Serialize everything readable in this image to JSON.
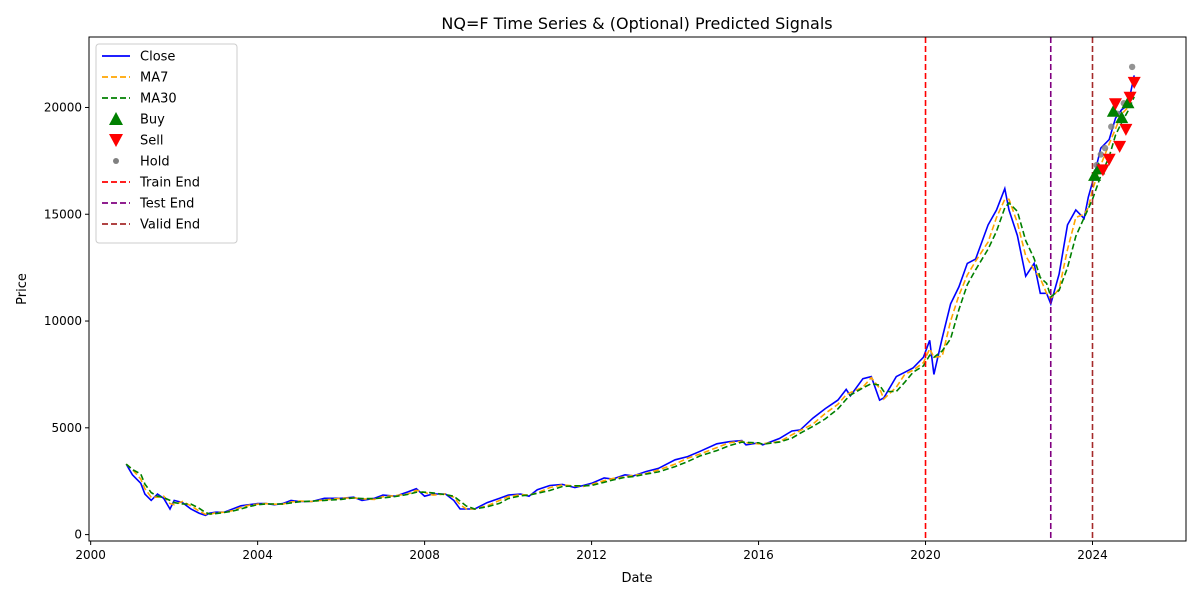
{
  "chart_data": {
    "type": "line",
    "title": "NQ=F Time Series & (Optional) Predicted Signals",
    "xlabel": "Date",
    "ylabel": "Price",
    "xlim": [
      1999.96,
      2026.24
    ],
    "ylim": [
      -300,
      23300
    ],
    "x_ticks": [
      2000,
      2004,
      2008,
      2012,
      2016,
      2020,
      2024
    ],
    "y_ticks": [
      0,
      5000,
      10000,
      15000,
      20000
    ],
    "grid": false,
    "legend_position": "upper-left",
    "colors": {
      "close": "#0000ff",
      "ma7": "#ffa500",
      "ma30": "#008000",
      "buy": "#008000",
      "sell": "#ff0000",
      "hold": "#808080",
      "train_end": "#ff0000",
      "test_end": "#800080",
      "valid_end": "#a52a2a"
    },
    "legend": [
      {
        "label": "Close",
        "kind": "line",
        "color": "#0000ff",
        "dash": ""
      },
      {
        "label": "MA7",
        "kind": "line",
        "color": "#ffa500",
        "dash": "6,3"
      },
      {
        "label": "MA30",
        "kind": "line",
        "color": "#008000",
        "dash": "6,3"
      },
      {
        "label": "Buy",
        "kind": "tri-up",
        "color": "#008000"
      },
      {
        "label": "Sell",
        "kind": "tri-down",
        "color": "#ff0000"
      },
      {
        "label": "Hold",
        "kind": "dot",
        "color": "#808080"
      },
      {
        "label": "Train End",
        "kind": "line",
        "color": "#ff0000",
        "dash": "6,3"
      },
      {
        "label": "Test End",
        "kind": "line",
        "color": "#800080",
        "dash": "6,3"
      },
      {
        "label": "Valid End",
        "kind": "line",
        "color": "#a52a2a",
        "dash": "6,3"
      }
    ],
    "vlines": [
      {
        "name": "Train End",
        "x": 2020.0,
        "color": "#ff0000"
      },
      {
        "name": "Test End",
        "x": 2023.0,
        "color": "#800080"
      },
      {
        "name": "Valid End",
        "x": 2024.0,
        "color": "#a52a2a"
      }
    ],
    "series": [
      {
        "name": "Close",
        "x": [
          2000.85,
          2001.0,
          2001.2,
          2001.3,
          2001.45,
          2001.6,
          2001.75,
          2001.9,
          2002.0,
          2002.2,
          2002.4,
          2002.6,
          2002.75,
          2002.85,
          2003.0,
          2003.2,
          2003.4,
          2003.6,
          2003.8,
          2004.0,
          2004.2,
          2004.4,
          2004.6,
          2004.8,
          2005.0,
          2005.3,
          2005.6,
          2006.0,
          2006.3,
          2006.5,
          2006.8,
          2007.0,
          2007.3,
          2007.6,
          2007.8,
          2008.0,
          2008.2,
          2008.5,
          2008.7,
          2008.85,
          2009.0,
          2009.2,
          2009.5,
          2009.8,
          2010.0,
          2010.3,
          2010.5,
          2010.7,
          2011.0,
          2011.3,
          2011.6,
          2011.8,
          2012.0,
          2012.3,
          2012.5,
          2012.8,
          2013.0,
          2013.3,
          2013.6,
          2014.0,
          2014.3,
          2014.6,
          2015.0,
          2015.3,
          2015.6,
          2015.7,
          2016.0,
          2016.1,
          2016.5,
          2016.8,
          2017.0,
          2017.3,
          2017.6,
          2017.9,
          2018.1,
          2018.2,
          2018.5,
          2018.7,
          2018.9,
          2019.0,
          2019.3,
          2019.5,
          2019.7,
          2019.95,
          2020.1,
          2020.2,
          2020.4,
          2020.6,
          2020.8,
          2021.0,
          2021.2,
          2021.5,
          2021.7,
          2021.9,
          2022.0,
          2022.2,
          2022.4,
          2022.6,
          2022.75,
          2022.9,
          2023.0,
          2023.2,
          2023.4,
          2023.6,
          2023.8,
          2023.9,
          2024.0,
          2024.2,
          2024.4,
          2024.55,
          2024.7,
          2024.85,
          2025.0
        ],
        "y": [
          3300,
          2800,
          2400,
          1900,
          1600,
          1900,
          1700,
          1200,
          1600,
          1500,
          1200,
          1000,
          900,
          1000,
          1050,
          1050,
          1200,
          1350,
          1400,
          1450,
          1450,
          1400,
          1450,
          1600,
          1550,
          1550,
          1700,
          1700,
          1750,
          1600,
          1700,
          1850,
          1800,
          2000,
          2150,
          1800,
          1900,
          1900,
          1600,
          1200,
          1200,
          1200,
          1500,
          1700,
          1850,
          1900,
          1800,
          2100,
          2300,
          2350,
          2200,
          2300,
          2400,
          2650,
          2600,
          2800,
          2750,
          2950,
          3100,
          3500,
          3650,
          3900,
          4250,
          4350,
          4400,
          4200,
          4300,
          4200,
          4500,
          4850,
          4900,
          5450,
          5900,
          6300,
          6800,
          6500,
          7300,
          7400,
          6300,
          6400,
          7400,
          7600,
          7800,
          8300,
          9100,
          7500,
          9200,
          10800,
          11600,
          12700,
          12900,
          14500,
          15200,
          16200,
          15200,
          14000,
          12100,
          12700,
          11300,
          11300,
          10800,
          12200,
          14500,
          15200,
          14800,
          15800,
          16500,
          18100,
          18500,
          19500,
          19900,
          20100,
          21500
        ]
      },
      {
        "name": "Buy",
        "x": [
          2024.05,
          2024.15,
          2024.5,
          2024.7,
          2024.85
        ],
        "y": [
          16800,
          17100,
          19800,
          19500,
          20200
        ]
      },
      {
        "name": "Sell",
        "x": [
          2024.25,
          2024.4,
          2024.55,
          2024.65,
          2024.8,
          2024.9,
          2025.0
        ],
        "y": [
          17100,
          17600,
          20200,
          18200,
          19000,
          20500,
          21200
        ]
      },
      {
        "name": "Hold",
        "x": [
          2024.1,
          2024.2,
          2024.3,
          2024.45,
          2024.6,
          2024.75,
          2024.95
        ],
        "y": [
          17300,
          17800,
          18100,
          19100,
          19700,
          20200,
          21900
        ]
      }
    ]
  }
}
